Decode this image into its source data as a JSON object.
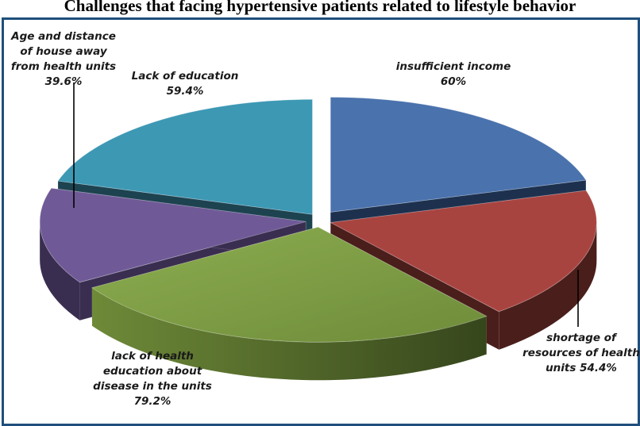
{
  "title": "Challenges that facing hypertensive patients related to lifestyle behavior",
  "chart_data": {
    "type": "pie",
    "style": "3d-exploded",
    "title": "Challenges that facing hypertensive patients related to lifestyle behavior",
    "slices": [
      {
        "lines": [
          "insufficient income",
          "60%"
        ],
        "value": 60.0,
        "color": "#4a72ad"
      },
      {
        "lines": [
          "shortage of",
          "resources of health",
          "units 54.4%"
        ],
        "value": 54.4,
        "color": "#a84440"
      },
      {
        "lines": [
          "lack of health",
          "education about",
          "disease in the units",
          "79.2%"
        ],
        "value": 79.2,
        "color": "#86a34c"
      },
      {
        "lines": [
          "Age and distance",
          "of house away",
          "from health units",
          "39.6%"
        ],
        "value": 39.6,
        "color": "#6f5a97"
      },
      {
        "lines": [
          "Lack of education",
          "59.4%"
        ],
        "value": 59.4,
        "color": "#3d98b4"
      }
    ]
  }
}
